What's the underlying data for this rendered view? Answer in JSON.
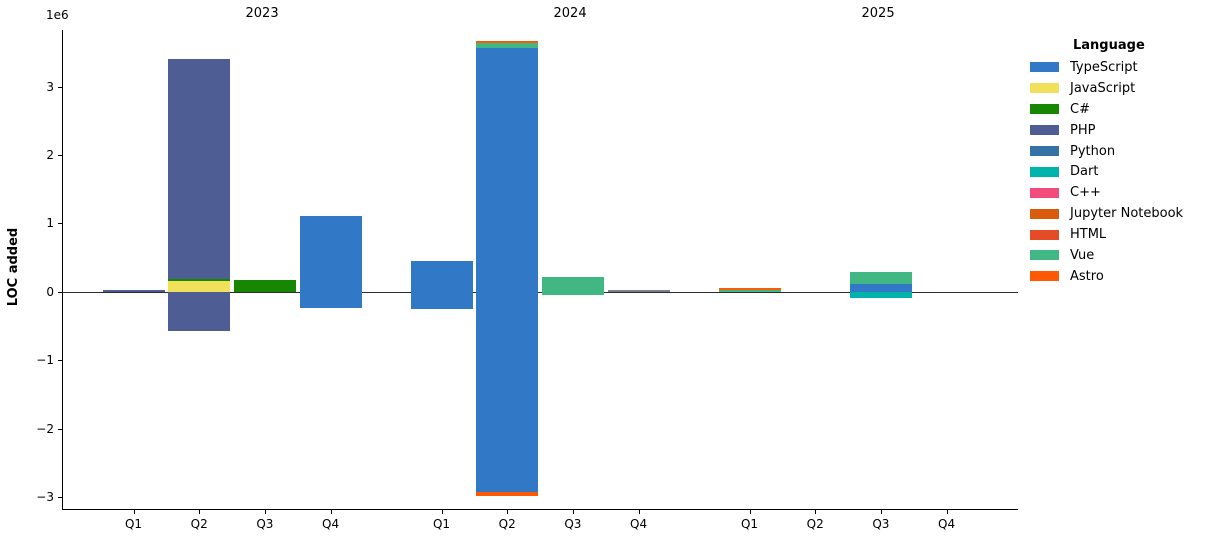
{
  "chart_data": {
    "type": "bar",
    "stacked": true,
    "ylabel": "LOC added",
    "offset_label": "1e6",
    "unit": 1000000,
    "grid": false,
    "ylim_e6": [
      -3.17,
      3.83
    ],
    "yticks_e6": [
      3,
      2,
      1,
      0,
      -1,
      -2,
      -3
    ],
    "groups": [
      {
        "label": "2023"
      },
      {
        "label": "2024"
      },
      {
        "label": "2025"
      }
    ],
    "quarters": [
      "Q1",
      "Q2",
      "Q3",
      "Q4"
    ],
    "legend": {
      "title": "Language",
      "position": "right",
      "entries": [
        {
          "name": "TypeScript",
          "color": "#3178c6"
        },
        {
          "name": "JavaScript",
          "color": "#f1e05a"
        },
        {
          "name": "C#",
          "color": "#178600"
        },
        {
          "name": "PHP",
          "color": "#4F5D95"
        },
        {
          "name": "Python",
          "color": "#3572A5"
        },
        {
          "name": "Dart",
          "color": "#00B4AB"
        },
        {
          "name": "C++",
          "color": "#f34b7d"
        },
        {
          "name": "Jupyter Notebook",
          "color": "#DA5B0B"
        },
        {
          "name": "HTML",
          "color": "#e34c26"
        },
        {
          "name": "Vue",
          "color": "#41b883"
        },
        {
          "name": "Astro",
          "color": "#ff5a03"
        }
      ]
    },
    "bars": [
      {
        "year": "2023",
        "quarter": "Q1",
        "segments": [
          {
            "language": "PHP",
            "value_e6": 0.02
          }
        ]
      },
      {
        "year": "2023",
        "quarter": "Q2",
        "segments": [
          {
            "language": "JavaScript",
            "value_e6": 0.16
          },
          {
            "language": "C#",
            "value_e6": 0.02
          },
          {
            "language": "PHP",
            "value_e6": 3.22
          },
          {
            "language": "PHP",
            "value_e6": -0.57
          }
        ]
      },
      {
        "year": "2023",
        "quarter": "Q3",
        "segments": [
          {
            "language": "C#",
            "value_e6": 0.17
          }
        ]
      },
      {
        "year": "2023",
        "quarter": "Q4",
        "segments": [
          {
            "language": "TypeScript",
            "value_e6": 1.1
          },
          {
            "language": "TypeScript",
            "value_e6": -0.24
          }
        ]
      },
      {
        "year": "2024",
        "quarter": "Q1",
        "segments": [
          {
            "language": "TypeScript",
            "value_e6": 0.45
          },
          {
            "language": "TypeScript",
            "value_e6": -0.25
          }
        ]
      },
      {
        "year": "2024",
        "quarter": "Q2",
        "segments": [
          {
            "language": "TypeScript",
            "value_e6": 3.57
          },
          {
            "language": "Vue",
            "value_e6": 0.06
          },
          {
            "language": "Astro",
            "value_e6": 0.04
          },
          {
            "language": "TypeScript",
            "value_e6": -2.93
          },
          {
            "language": "Astro",
            "value_e6": -0.05
          }
        ]
      },
      {
        "year": "2024",
        "quarter": "Q3",
        "segments": [
          {
            "language": "Vue",
            "value_e6": 0.22
          },
          {
            "language": "Vue",
            "value_e6": -0.05
          }
        ]
      },
      {
        "year": "2024",
        "quarter": "Q4",
        "segments": [
          {
            "language": "Dart",
            "value_e6": 0.01
          },
          {
            "language": "C++",
            "value_e6": 0.02
          }
        ]
      },
      {
        "year": "2025",
        "quarter": "Q1",
        "segments": [
          {
            "language": "Vue",
            "value_e6": 0.03
          },
          {
            "language": "Astro",
            "value_e6": 0.02
          }
        ]
      },
      {
        "year": "2025",
        "quarter": "Q2",
        "segments": []
      },
      {
        "year": "2025",
        "quarter": "Q3",
        "segments": [
          {
            "language": "TypeScript",
            "value_e6": 0.11
          },
          {
            "language": "Vue",
            "value_e6": 0.18
          },
          {
            "language": "Dart",
            "value_e6": -0.09
          }
        ]
      },
      {
        "year": "2025",
        "quarter": "Q4",
        "segments": []
      }
    ]
  }
}
